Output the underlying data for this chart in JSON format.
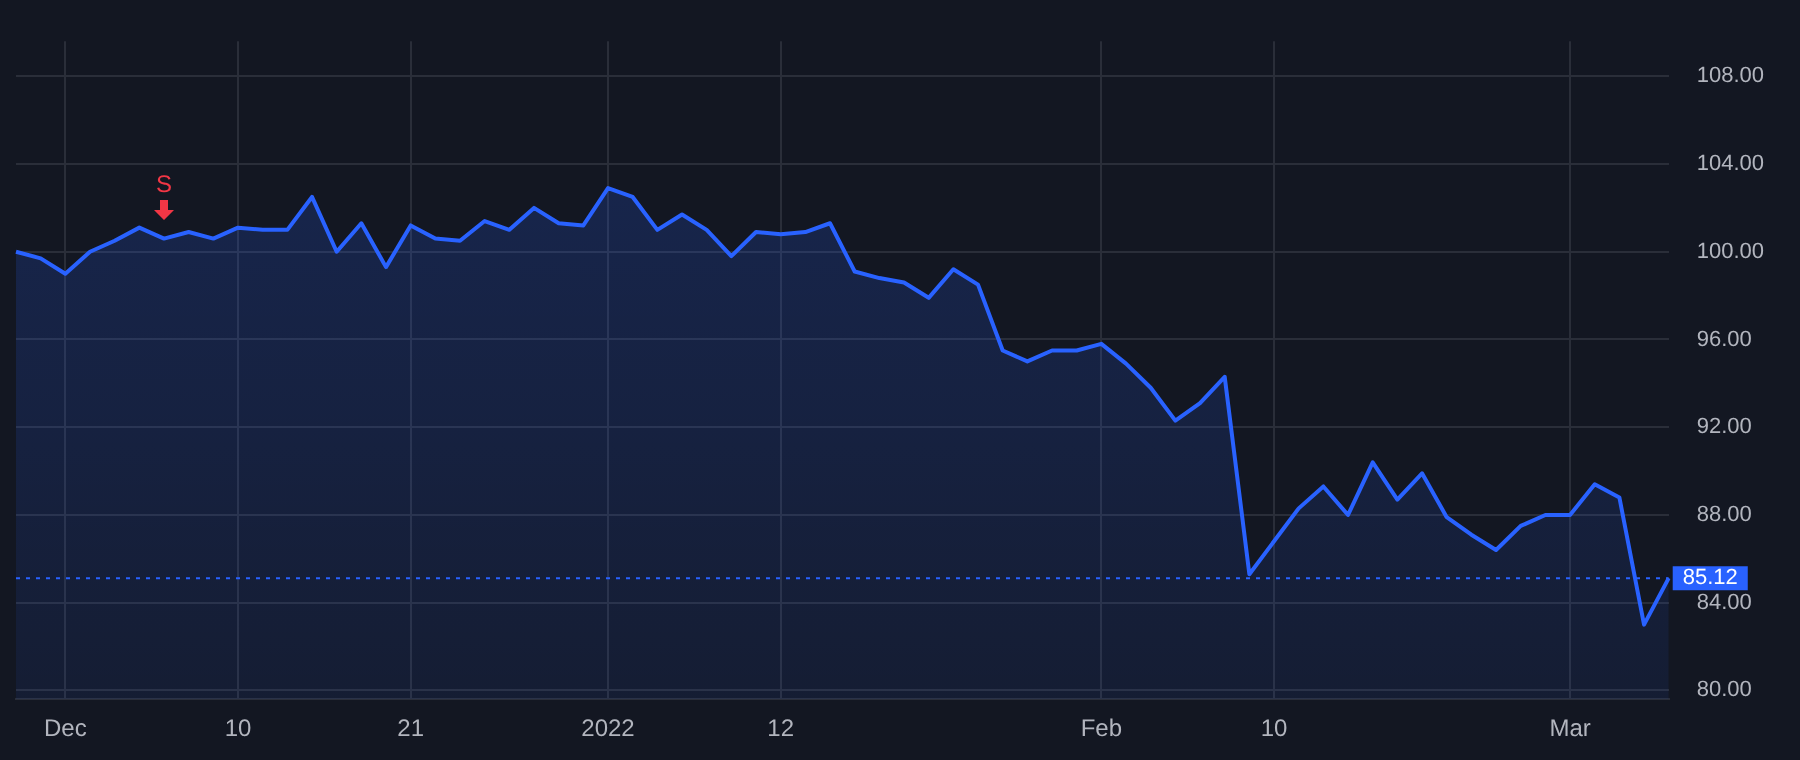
{
  "chart_data": {
    "type": "area",
    "categories": [
      null,
      null,
      "Dec",
      null,
      null,
      null,
      null,
      null,
      null,
      "10",
      null,
      null,
      null,
      null,
      null,
      null,
      "21",
      null,
      null,
      null,
      null,
      null,
      null,
      null,
      "2022",
      null,
      null,
      null,
      null,
      null,
      null,
      "12",
      null,
      null,
      null,
      null,
      null,
      null,
      null,
      null,
      null,
      null,
      null,
      null,
      "Feb",
      null,
      null,
      null,
      null,
      null,
      null,
      "10",
      null,
      null,
      null,
      null,
      null,
      null,
      null,
      null,
      null,
      null,
      null,
      "Mar",
      null,
      null,
      null,
      null
    ],
    "series": [
      {
        "color": "#2962ff",
        "values": [
          100.0,
          99.7,
          99.0,
          100.0,
          100.5,
          101.1,
          100.6,
          100.9,
          100.6,
          101.1,
          101.0,
          101.0,
          102.5,
          100.0,
          101.3,
          99.3,
          101.2,
          100.6,
          100.5,
          101.4,
          101.0,
          102.0,
          101.3,
          101.2,
          102.9,
          102.5,
          101.0,
          101.7,
          101.0,
          99.8,
          100.9,
          100.8,
          100.9,
          101.3,
          99.1,
          98.8,
          98.6,
          97.9,
          99.2,
          98.5,
          95.5,
          95.0,
          95.5,
          95.5,
          95.8,
          94.9,
          93.8,
          92.3,
          93.1,
          94.3,
          85.3,
          86.8,
          88.3,
          89.3,
          88.0,
          90.4,
          88.7,
          89.9,
          87.9,
          87.1,
          86.4,
          87.5,
          88.0,
          88.0,
          89.4,
          88.8,
          83.0,
          85.12
        ]
      }
    ],
    "ylim": [
      79.6,
      109.6
    ],
    "yticks": [
      {
        "value": 80,
        "label": "80.00"
      },
      {
        "value": 84,
        "label": "84.00"
      },
      {
        "value": 88,
        "label": "88.00"
      },
      {
        "value": 92,
        "label": "92.00"
      },
      {
        "value": 96,
        "label": "96.00"
      },
      {
        "value": 100,
        "label": "100.00"
      },
      {
        "value": 104,
        "label": "104.00"
      },
      {
        "value": 108,
        "label": "108.00"
      }
    ],
    "grid": true,
    "legend": false,
    "ref_lines": [
      {
        "axis": "y",
        "value": 85.12,
        "label": "85.12",
        "color": "#2962ff",
        "line_style": "dotted"
      }
    ],
    "annotations": [
      "S"
    ]
  }
}
